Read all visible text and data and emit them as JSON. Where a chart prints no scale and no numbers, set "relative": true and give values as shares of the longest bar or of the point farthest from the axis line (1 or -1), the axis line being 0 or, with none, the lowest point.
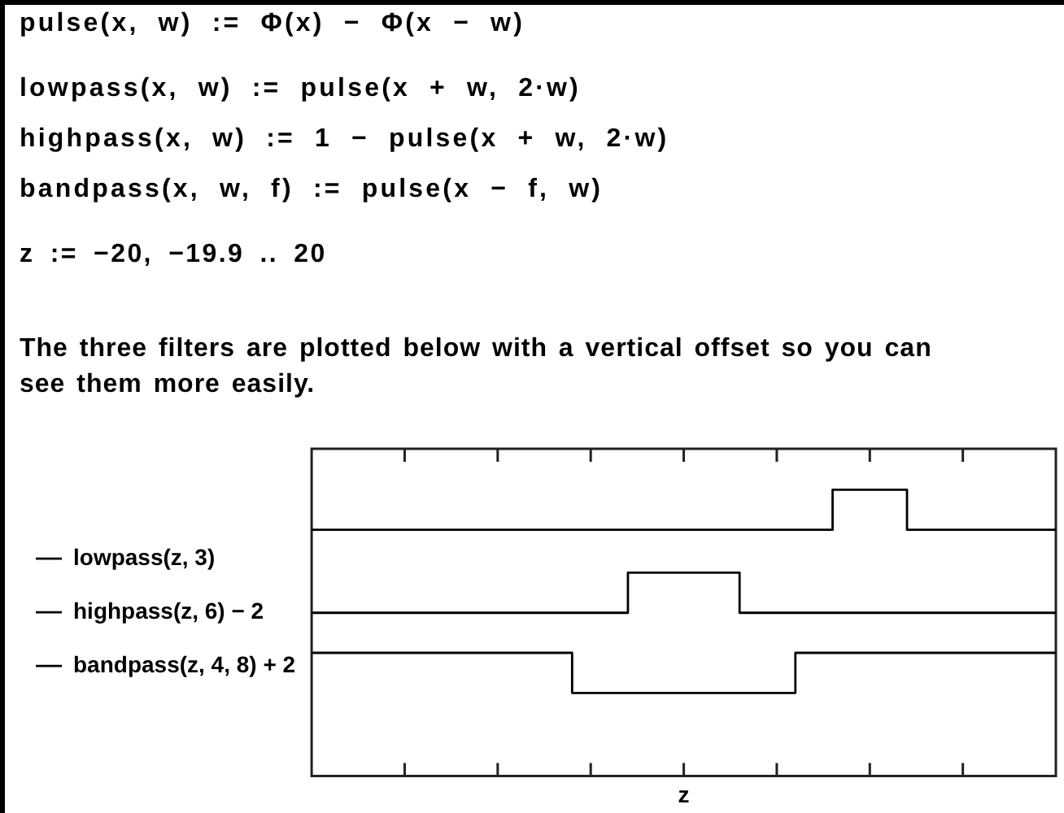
{
  "chart_data": {
    "type": "step",
    "xlabel": "z",
    "legend": "left",
    "relative": true,
    "annotations": [
      "pulse(x, w) := Φ(x) − Φ(x − w)",
      "lowpass(x, w) := pulse(x + w, 2·w)",
      "highpass(x, w) := 1 − pulse(x + w, 2·w)",
      "bandpass(x, w, f) := pulse(x − f, w)",
      "z := −20, −19.9 .. 20",
      "The three filters are plotted below with a vertical offset so you can see them more easily."
    ],
    "categories": [
      null,
      null,
      null,
      null,
      null,
      null,
      null,
      null,
      null,
      null,
      null,
      null,
      null,
      null,
      null,
      null,
      null,
      null,
      null,
      null,
      null,
      null,
      null,
      null,
      null,
      null,
      null,
      null,
      null,
      null,
      null,
      null,
      null,
      null,
      null,
      null,
      null,
      null,
      null,
      null,
      null
    ],
    "series": [
      {
        "name": "lowpass(z, 3)",
        "color": "#000000",
        "values": [
          0.57,
          0.57,
          0.57,
          0.57,
          0.57,
          0.57,
          0.57,
          0.57,
          0.57,
          0.57,
          0.57,
          0.57,
          0.57,
          0.57,
          0.57,
          0.57,
          0.57,
          0.71,
          0.71,
          0.71,
          0.71,
          0.71,
          0.71,
          0.57,
          0.57,
          0.57,
          0.57,
          0.57,
          0.57,
          0.57,
          0.57,
          0.57,
          0.57,
          0.57,
          0.57,
          0.57,
          0.57,
          0.57,
          0.57,
          0.57,
          0.57
        ]
      },
      {
        "name": "highpass(z, 6) − 2",
        "color": "#000000",
        "values": [
          0.43,
          0.43,
          0.43,
          0.43,
          0.43,
          0.43,
          0.43,
          0.43,
          0.43,
          0.43,
          0.43,
          0.43,
          0.43,
          0.43,
          0.29,
          0.29,
          0.29,
          0.29,
          0.29,
          0.29,
          0.29,
          0.29,
          0.29,
          0.29,
          0.29,
          0.29,
          0.43,
          0.43,
          0.43,
          0.43,
          0.43,
          0.43,
          0.43,
          0.43,
          0.43,
          0.43,
          0.43,
          0.43,
          0.43,
          0.43,
          0.43
        ]
      },
      {
        "name": "bandpass(z, 4, 8) + 2",
        "color": "#000000",
        "values": [
          0.86,
          0.86,
          0.86,
          0.86,
          0.86,
          0.86,
          0.86,
          0.86,
          0.86,
          0.86,
          0.86,
          0.86,
          0.86,
          0.86,
          0.86,
          0.86,
          0.86,
          0.86,
          0.86,
          0.86,
          0.86,
          0.86,
          0.86,
          0.86,
          0.86,
          0.86,
          0.86,
          0.86,
          1,
          1,
          1,
          1,
          0.86,
          0.86,
          0.86,
          0.86,
          0.86,
          0.86,
          0.86,
          0.86,
          0.86
        ]
      }
    ]
  }
}
